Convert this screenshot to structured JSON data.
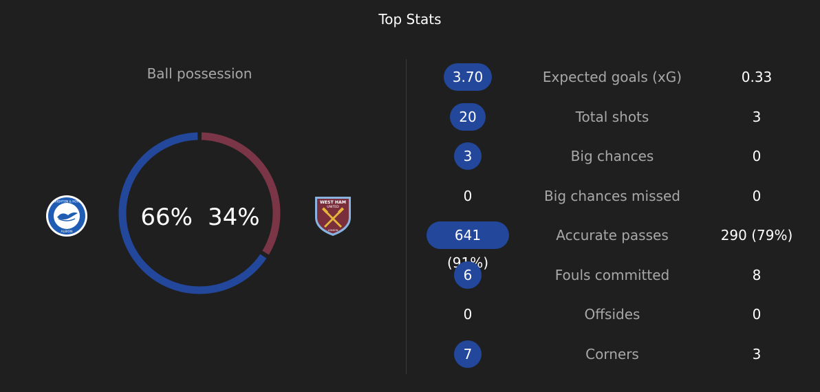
{
  "header": {
    "title": "Top Stats"
  },
  "possession": {
    "label": "Ball possession",
    "home_pct_text": "66%",
    "away_pct_text": "34%",
    "home_value": 66,
    "away_value": 34,
    "home_color": "#23479b",
    "away_color": "#7a3546"
  },
  "teams": {
    "home": {
      "logo_icon": "brighton-crest-icon",
      "logo_text_top": "BRIGHTON & HOVE",
      "logo_text_bottom": "ALBION"
    },
    "away": {
      "logo_icon": "west-ham-crest-icon",
      "logo_text_top": "WEST HAM",
      "logo_text_mid": "UNITED",
      "logo_text_bottom": "LONDON"
    }
  },
  "stats": [
    {
      "name": "Expected goals (xG)",
      "home": "3.70",
      "away": "0.33",
      "home_highlight": true
    },
    {
      "name": "Total shots",
      "home": "20",
      "away": "3",
      "home_highlight": true
    },
    {
      "name": "Big chances",
      "home": "3",
      "away": "0",
      "home_highlight": true
    },
    {
      "name": "Big chances missed",
      "home": "0",
      "away": "0",
      "home_highlight": false
    },
    {
      "name": "Accurate passes",
      "home": "641 (91%)",
      "away": "290 (79%)",
      "home_highlight": true
    },
    {
      "name": "Fouls committed",
      "home": "6",
      "away": "8",
      "home_highlight": true
    },
    {
      "name": "Offsides",
      "home": "0",
      "away": "0",
      "home_highlight": false
    },
    {
      "name": "Corners",
      "home": "7",
      "away": "3",
      "home_highlight": true
    }
  ]
}
